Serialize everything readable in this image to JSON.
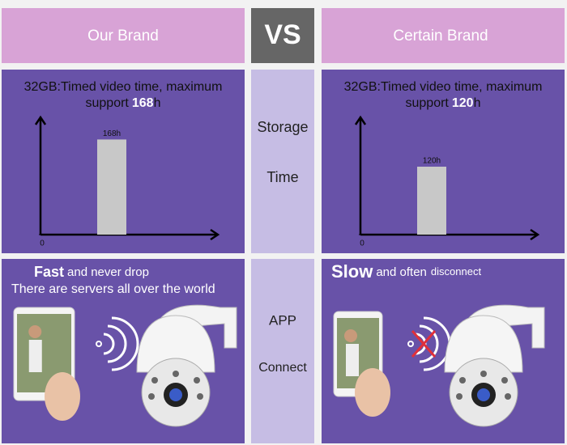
{
  "header": {
    "left": "Our Brand",
    "middle": "VS",
    "right": "Certain Brand"
  },
  "row_labels": {
    "storage": [
      "Storage",
      "Time"
    ],
    "app": [
      "APP",
      "Connect"
    ]
  },
  "panels": [
    {
      "storage": {
        "line1": "32GB:Timed video time, maximum",
        "line2": "support",
        "highlight": "168",
        "suffix": "h",
        "chart": {
          "type": "bar",
          "values": [
            168
          ],
          "value_labels": [
            "168h"
          ],
          "ylim": [
            0,
            200
          ],
          "yticks": [
            0
          ],
          "color": "#c8c8c8"
        }
      },
      "app": {
        "highlight": "Fast",
        "line1": "and never drop",
        "line2": "There are servers all over the world",
        "connected": true
      }
    },
    {
      "storage": {
        "line1": "32GB:Timed video time, maximum",
        "line2": "support",
        "highlight": "120",
        "suffix": "h",
        "chart": {
          "type": "bar",
          "values": [
            120
          ],
          "value_labels": [
            "120h"
          ],
          "ylim": [
            0,
            200
          ],
          "yticks": [
            0
          ],
          "color": "#c8c8c8"
        }
      },
      "app": {
        "highlight": "Slow",
        "line1": "and often",
        "line2": "disconnect",
        "connected": false
      }
    }
  ]
}
